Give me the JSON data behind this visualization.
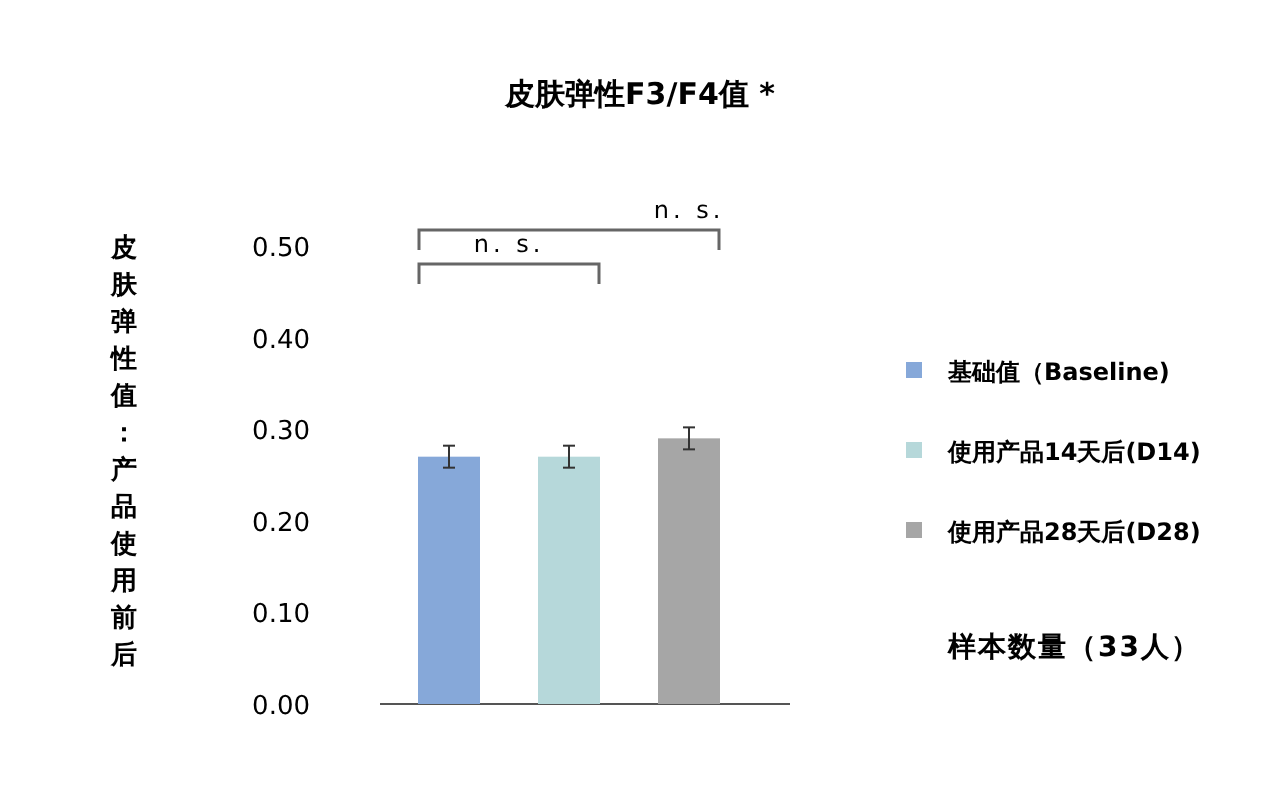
{
  "chart_data": {
    "type": "bar",
    "title": "皮肤弹性F3/F4值 *",
    "ylabel": "皮肤弹性值：产品使用前后",
    "categories": [
      null
    ],
    "series": [
      {
        "name": "基础值（Baseline)",
        "color": "#86a8d9",
        "values": [
          0.27
        ],
        "errors": [
          0.012
        ]
      },
      {
        "name": "使用产品14天后(D14)",
        "color": "#b6d8da",
        "values": [
          0.27
        ],
        "errors": [
          0.012
        ]
      },
      {
        "name": "使用产品28天后(D28)",
        "color": "#a6a6a6",
        "values": [
          0.29
        ],
        "errors": [
          0.012
        ]
      }
    ],
    "ylim": [
      0,
      0.5
    ],
    "yticks": [
      {
        "value": 0,
        "label": "0.00"
      },
      {
        "value": 0.1,
        "label": "0.10"
      },
      {
        "value": 0.2,
        "label": "0.20"
      },
      {
        "value": 0.3,
        "label": "0.30"
      },
      {
        "value": 0.4,
        "label": "0.40"
      },
      {
        "value": 0.5,
        "label": "0.50"
      }
    ],
    "grid": false,
    "legend": "right",
    "annotations": [
      "n. s.",
      "n. s.",
      "样本数量（33人）"
    ]
  }
}
